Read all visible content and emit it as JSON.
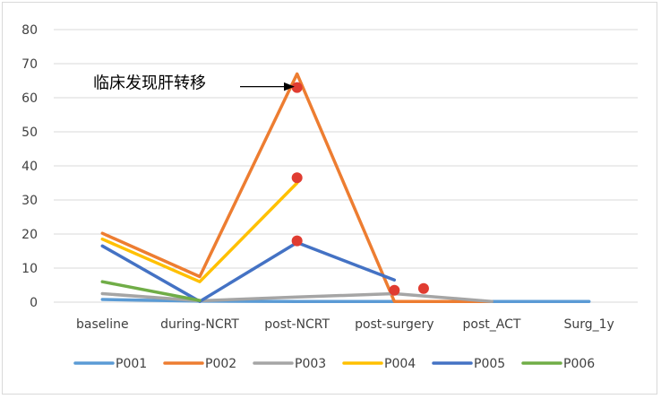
{
  "chart_data": {
    "type": "line",
    "categories": [
      "baseline",
      "during-NCRT",
      "post-NCRT",
      "post-surgery",
      "post_ACT",
      "Surg_1y"
    ],
    "ylim": [
      0,
      80
    ],
    "yticks": [
      0,
      10,
      20,
      30,
      40,
      50,
      60,
      70,
      80
    ],
    "grid": true,
    "legend_position": "bottom",
    "series": [
      {
        "name": "P001",
        "color": "#5b9bd5",
        "values": [
          0.8,
          0.3,
          0.2,
          0.2,
          0.2,
          0.2
        ]
      },
      {
        "name": "P002",
        "color": "#ed7d31",
        "values": [
          20.2,
          7.5,
          67,
          0.2,
          0.2,
          null
        ]
      },
      {
        "name": "P003",
        "color": "#a5a5a5",
        "values": [
          2.5,
          0.4,
          1.5,
          2.5,
          0.2,
          null
        ]
      },
      {
        "name": "P004",
        "color": "#ffc000",
        "values": [
          18.5,
          6,
          35,
          null,
          null,
          null
        ]
      },
      {
        "name": "P005",
        "color": "#4472c4",
        "values": [
          16.5,
          0.2,
          17.5,
          6.5,
          null,
          null
        ]
      },
      {
        "name": "P006",
        "color": "#70ad47",
        "values": [
          6,
          0.5,
          null,
          null,
          null,
          null
        ]
      }
    ],
    "markers": [
      {
        "x": 2,
        "y": 63,
        "color": "#e03c31"
      },
      {
        "x": 2,
        "y": 36.5,
        "color": "#e03c31"
      },
      {
        "x": 2,
        "y": 18,
        "color": "#e03c31"
      },
      {
        "x": 3,
        "y": 3.5,
        "color": "#e03c31"
      },
      {
        "x": 3.3,
        "y": 4,
        "color": "#e03c31"
      }
    ],
    "annotation": {
      "text": "临床发现肝转移",
      "x": 2,
      "y": 63
    }
  }
}
